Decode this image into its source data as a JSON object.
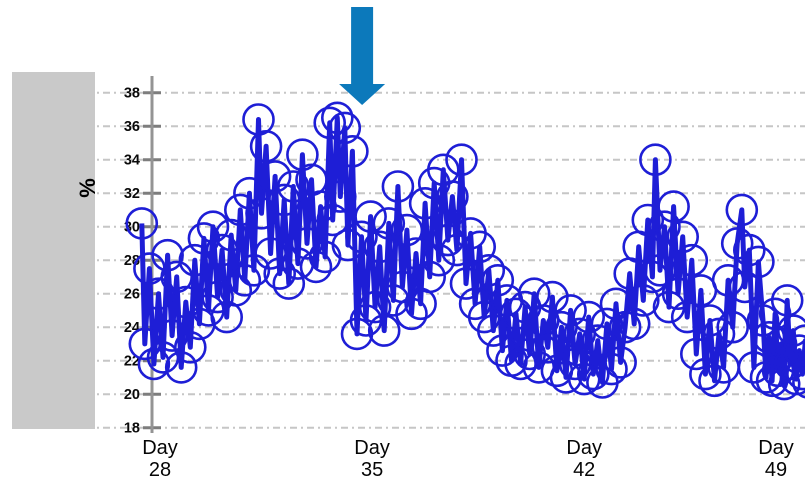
{
  "panel": {
    "color": "#c9c9c9"
  },
  "axis": {
    "line_color": "#949494",
    "tick_color": "#7d7d7d",
    "grid_color": "#c6c6c6",
    "label_color": "#0a0a0a"
  },
  "chart_data": {
    "type": "line",
    "marker": "open-circle",
    "title": "",
    "xlabel": "",
    "ylabel": "%",
    "legend": "none",
    "grid": "horizontal-dashed",
    "ylim": [
      18,
      38
    ],
    "y_ticks": [
      18,
      20,
      22,
      24,
      26,
      28,
      30,
      32,
      34,
      36,
      38
    ],
    "x_tick_prefix": "Day",
    "x_ticks": [
      28,
      35,
      42,
      49
    ],
    "annotation_arrow": {
      "shape": "down-arrow",
      "color": "#0c79bb",
      "points_at_day": 34.67
    },
    "series": [
      {
        "name": "percent",
        "color": "#1e1ed6",
        "points": [
          [
            27.4,
            30.2
          ],
          [
            27.5,
            23.0
          ],
          [
            27.65,
            27.5
          ],
          [
            27.8,
            21.8
          ],
          [
            27.95,
            26.0
          ],
          [
            28.1,
            22.2
          ],
          [
            28.25,
            28.3
          ],
          [
            28.4,
            23.5
          ],
          [
            28.55,
            27.0
          ],
          [
            28.7,
            21.6
          ],
          [
            28.85,
            25.5
          ],
          [
            29.0,
            22.8
          ],
          [
            29.15,
            28.0
          ],
          [
            29.3,
            24.2
          ],
          [
            29.45,
            29.3
          ],
          [
            29.6,
            25.0
          ],
          [
            29.75,
            30.0
          ],
          [
            29.9,
            25.8
          ],
          [
            30.05,
            28.6
          ],
          [
            30.2,
            24.6
          ],
          [
            30.35,
            29.5
          ],
          [
            30.5,
            26.2
          ],
          [
            30.65,
            31.0
          ],
          [
            30.8,
            26.8
          ],
          [
            30.95,
            32.0
          ],
          [
            31.1,
            27.4
          ],
          [
            31.25,
            36.4
          ],
          [
            31.35,
            30.8
          ],
          [
            31.5,
            34.8
          ],
          [
            31.65,
            28.4
          ],
          [
            31.8,
            33.0
          ],
          [
            31.95,
            27.2
          ],
          [
            32.1,
            31.6
          ],
          [
            32.25,
            26.6
          ],
          [
            32.4,
            32.4
          ],
          [
            32.55,
            27.8
          ],
          [
            32.7,
            34.3
          ],
          [
            32.85,
            29.0
          ],
          [
            33.0,
            32.8
          ],
          [
            33.15,
            27.6
          ],
          [
            33.3,
            31.2
          ],
          [
            33.45,
            28.2
          ],
          [
            33.6,
            36.2
          ],
          [
            33.7,
            30.4
          ],
          [
            33.85,
            36.5
          ],
          [
            33.95,
            31.8
          ],
          [
            34.1,
            35.9
          ],
          [
            34.2,
            28.9
          ],
          [
            34.35,
            34.5
          ],
          [
            34.5,
            23.6
          ],
          [
            34.65,
            29.4
          ],
          [
            34.8,
            24.4
          ],
          [
            34.95,
            30.6
          ],
          [
            35.1,
            25.2
          ],
          [
            35.25,
            28.8
          ],
          [
            35.4,
            23.8
          ],
          [
            35.55,
            30.2
          ],
          [
            35.7,
            25.6
          ],
          [
            35.85,
            32.4
          ],
          [
            36.0,
            26.4
          ],
          [
            36.15,
            29.8
          ],
          [
            36.3,
            24.8
          ],
          [
            36.45,
            28.4
          ],
          [
            36.6,
            25.4
          ],
          [
            36.75,
            31.4
          ],
          [
            36.9,
            27.0
          ],
          [
            37.05,
            32.6
          ],
          [
            37.2,
            28.0
          ],
          [
            37.35,
            33.4
          ],
          [
            37.5,
            29.2
          ],
          [
            37.65,
            31.8
          ],
          [
            37.8,
            28.6
          ],
          [
            37.95,
            34.0
          ],
          [
            38.1,
            26.6
          ],
          [
            38.25,
            29.6
          ],
          [
            38.4,
            25.4
          ],
          [
            38.55,
            28.8
          ],
          [
            38.7,
            24.6
          ],
          [
            38.85,
            27.4
          ],
          [
            39.0,
            23.8
          ],
          [
            39.15,
            26.8
          ],
          [
            39.3,
            22.6
          ],
          [
            39.45,
            25.6
          ],
          [
            39.6,
            22.0
          ],
          [
            39.75,
            24.8
          ],
          [
            39.9,
            21.8
          ],
          [
            40.05,
            25.2
          ],
          [
            40.2,
            22.4
          ],
          [
            40.35,
            26.0
          ],
          [
            40.5,
            21.6
          ],
          [
            40.65,
            24.4
          ],
          [
            40.8,
            22.8
          ],
          [
            40.95,
            25.8
          ],
          [
            41.1,
            21.4
          ],
          [
            41.25,
            24.0
          ],
          [
            41.4,
            21.0
          ],
          [
            41.55,
            25.0
          ],
          [
            41.7,
            21.8
          ],
          [
            41.85,
            23.6
          ],
          [
            42.0,
            20.9
          ],
          [
            42.15,
            24.6
          ],
          [
            42.3,
            21.2
          ],
          [
            42.45,
            23.2
          ],
          [
            42.6,
            20.7
          ],
          [
            42.75,
            24.2
          ],
          [
            42.9,
            21.5
          ],
          [
            43.05,
            25.4
          ],
          [
            43.2,
            21.9
          ],
          [
            43.35,
            24.0
          ],
          [
            43.5,
            27.2
          ],
          [
            43.65,
            24.2
          ],
          [
            43.8,
            28.8
          ],
          [
            43.95,
            25.6
          ],
          [
            44.1,
            30.4
          ],
          [
            44.25,
            27.0
          ],
          [
            44.35,
            34.0
          ],
          [
            44.5,
            27.4
          ],
          [
            44.65,
            30.0
          ],
          [
            44.8,
            25.2
          ],
          [
            44.95,
            31.2
          ],
          [
            45.1,
            26.0
          ],
          [
            45.25,
            29.4
          ],
          [
            45.4,
            24.6
          ],
          [
            45.55,
            28.0
          ],
          [
            45.7,
            22.4
          ],
          [
            45.85,
            26.2
          ],
          [
            46.0,
            21.2
          ],
          [
            46.15,
            24.4
          ],
          [
            46.3,
            20.8
          ],
          [
            46.45,
            23.6
          ],
          [
            46.6,
            21.6
          ],
          [
            46.75,
            26.8
          ],
          [
            46.9,
            24.0
          ],
          [
            47.05,
            29.0
          ],
          [
            47.2,
            31.0
          ],
          [
            47.3,
            26.4
          ],
          [
            47.45,
            28.6
          ],
          [
            47.6,
            21.6
          ],
          [
            47.75,
            27.9
          ],
          [
            47.9,
            24.4
          ],
          [
            48.0,
            21.0
          ],
          [
            48.1,
            23.4
          ],
          [
            48.2,
            20.8
          ],
          [
            48.3,
            24.8
          ],
          [
            48.4,
            21.4
          ],
          [
            48.5,
            23.0
          ],
          [
            48.6,
            20.6
          ],
          [
            48.7,
            25.6
          ],
          [
            48.8,
            21.8
          ],
          [
            48.9,
            23.8
          ],
          [
            49.0,
            20.9
          ],
          [
            49.1,
            22.6
          ],
          [
            49.2,
            21.2
          ],
          [
            49.3,
            23.2
          ],
          [
            49.4,
            20.7
          ]
        ]
      }
    ]
  }
}
